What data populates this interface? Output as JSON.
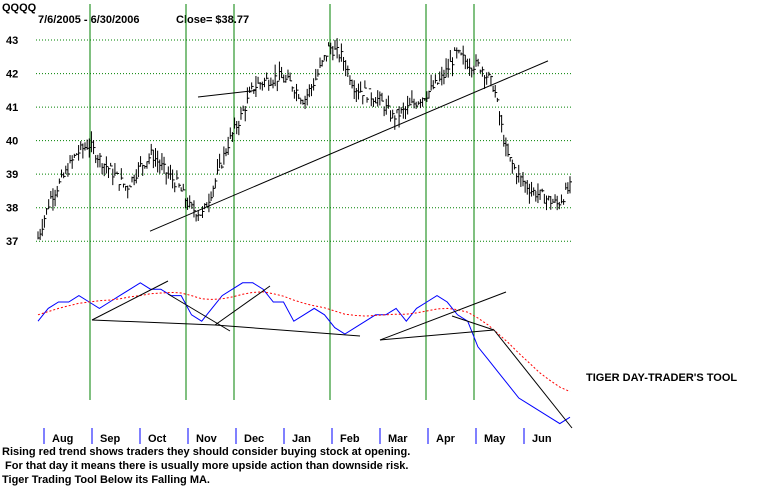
{
  "header": {
    "ticker": "QQQQ",
    "date_range": "7/6/2005 - 6/30/2006",
    "close_label": "Close= $38.77"
  },
  "tool_label": "TIGER DAY-TRADER'S TOOL",
  "notes": [
    "Rising red trend shows traders they should consider buying stock at opening.",
    " For that day it means there is usually more upside action than downside risk.",
    "Tiger Trading Tool Below its Falling MA."
  ],
  "colors": {
    "bars": "#000000",
    "grid": "#008000",
    "month_divider": "#008000",
    "trendline": "#000000",
    "tool_line": "#0000ff",
    "tool_ma": "#ff0000",
    "tick_marks": "#0000ff"
  },
  "chart_data": [
    {
      "type": "bar",
      "subtype": "ohlc-daily",
      "title": "QQQQ",
      "subtitle": "7/6/2005 - 6/30/2006",
      "ylim": [
        36.5,
        43.3
      ],
      "yticks": [
        37,
        38,
        39,
        40,
        41,
        42,
        43
      ],
      "grid": "horizontal dotted",
      "x_months": [
        "Aug",
        "Sep",
        "Oct",
        "Nov",
        "Dec",
        "Jan",
        "Feb",
        "Mar",
        "Apr",
        "May",
        "Jun"
      ],
      "month_dividers_after": [
        "Aug",
        "Oct",
        "Nov",
        "Jan",
        "Mar",
        "Apr"
      ],
      "close_series_weekly": [
        37.1,
        38.3,
        38.9,
        39.6,
        39.9,
        39.4,
        39.0,
        38.6,
        39.2,
        39.6,
        39.1,
        38.7,
        38.0,
        37.8,
        38.8,
        39.9,
        40.7,
        41.6,
        41.8,
        41.9,
        41.7,
        41.2,
        41.9,
        42.8,
        42.5,
        41.6,
        41.4,
        41.2,
        40.7,
        40.9,
        41.2,
        41.5,
        41.9,
        42.6,
        42.3,
        42.2,
        41.6,
        39.6,
        38.9,
        38.5,
        38.3,
        38.1,
        38.6
      ],
      "trendlines": [
        {
          "from": [
            "Oct",
            37.3
          ],
          "to": [
            "May",
            42.2
          ]
        },
        {
          "from": [
            "Nov",
            41.3
          ],
          "to": [
            "Dec",
            41.5
          ]
        }
      ]
    },
    {
      "type": "line",
      "title": "TIGER DAY-TRADER'S TOOL",
      "series": [
        {
          "values": [
            2,
            4,
            5,
            5,
            6,
            5,
            4,
            5,
            6,
            7,
            8,
            7,
            7,
            6,
            6,
            3,
            2,
            4,
            6,
            7,
            8,
            8,
            7,
            5,
            5,
            2,
            3,
            4,
            3,
            1,
            0,
            1,
            2,
            3,
            3,
            4,
            2,
            4,
            5,
            6,
            5,
            3,
            2,
            -2,
            -4,
            -6,
            -8,
            -10,
            -11,
            -12,
            -13,
            -14,
            -13
          ]
        },
        {
          "values": [
            3,
            3.5,
            4,
            4.4,
            4.8,
            5,
            5.2,
            5.3,
            5.5,
            5.8,
            6,
            6.3,
            6.4,
            6.5,
            6.4,
            6,
            5.5,
            5.4,
            5.5,
            5.8,
            6.2,
            6.5,
            6.6,
            6.3,
            5.9,
            5.3,
            4.8,
            4.4,
            4.1,
            3.6,
            3.1,
            2.9,
            2.8,
            2.9,
            3,
            3.1,
            3.1,
            3.3,
            3.6,
            3.9,
            4,
            3.8,
            3.4,
            2.5,
            1.4,
            0,
            -1.4,
            -3,
            -4.5,
            -6,
            -7.2,
            -8.3,
            -9
          ]
        }
      ],
      "trendlines": 9
    }
  ]
}
